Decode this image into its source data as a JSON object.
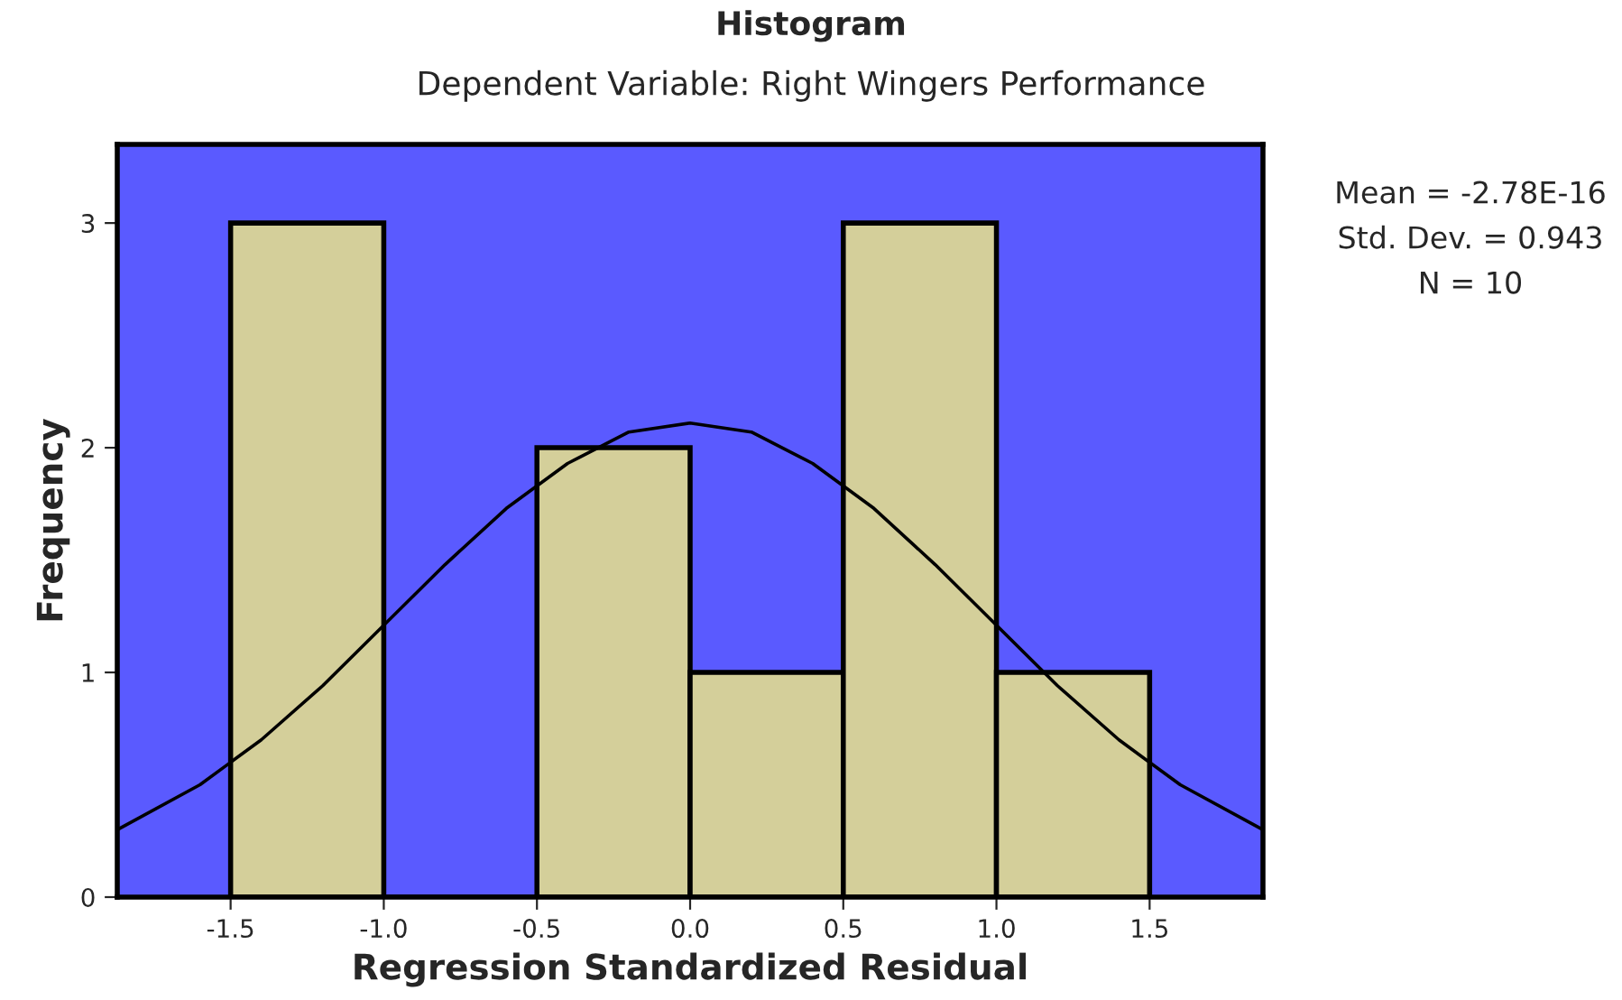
{
  "chart_data": {
    "type": "histogram",
    "title": "Histogram",
    "subtitle": "Dependent Variable: Right Wingers Performance",
    "xlabel": "Regression Standardized Residual",
    "ylabel": "Frequency",
    "series": [
      {
        "color": "#d4cf9a",
        "bins": [
          -1.5,
          -1.0,
          -0.5,
          0.0,
          0.5,
          1.0,
          1.5
        ],
        "values": [
          3,
          0,
          2,
          1,
          3,
          1
        ]
      },
      {
        "type": "line",
        "color": "#000000",
        "x": [
          -1.87,
          -1.6,
          -1.4,
          -1.2,
          -1.0,
          -0.8,
          -0.6,
          -0.4,
          -0.2,
          0.0,
          0.2,
          0.4,
          0.6,
          0.8,
          1.0,
          1.2,
          1.4,
          1.6,
          1.87
        ],
        "values": [
          0.3,
          0.5,
          0.7,
          0.94,
          1.21,
          1.48,
          1.73,
          1.93,
          2.07,
          2.11,
          2.07,
          1.93,
          1.73,
          1.48,
          1.21,
          0.94,
          0.7,
          0.5,
          0.3
        ]
      }
    ],
    "xlim": [
      -1.87,
      1.87
    ],
    "ylim": [
      0,
      3.35
    ],
    "xticks": [
      -1.5,
      {
        "value": -1.0,
        "label": "-1.0"
      },
      -0.5,
      {
        "value": 0.0,
        "label": "0.0"
      },
      0.5,
      {
        "value": 1.0,
        "label": "1.0"
      },
      1.5
    ],
    "yticks": [
      0,
      1,
      2,
      3
    ],
    "grid": false,
    "legend": false,
    "annotations": [
      "Mean = -2.78E-16",
      "Std. Dev. = 0.943",
      "N = 10"
    ]
  }
}
